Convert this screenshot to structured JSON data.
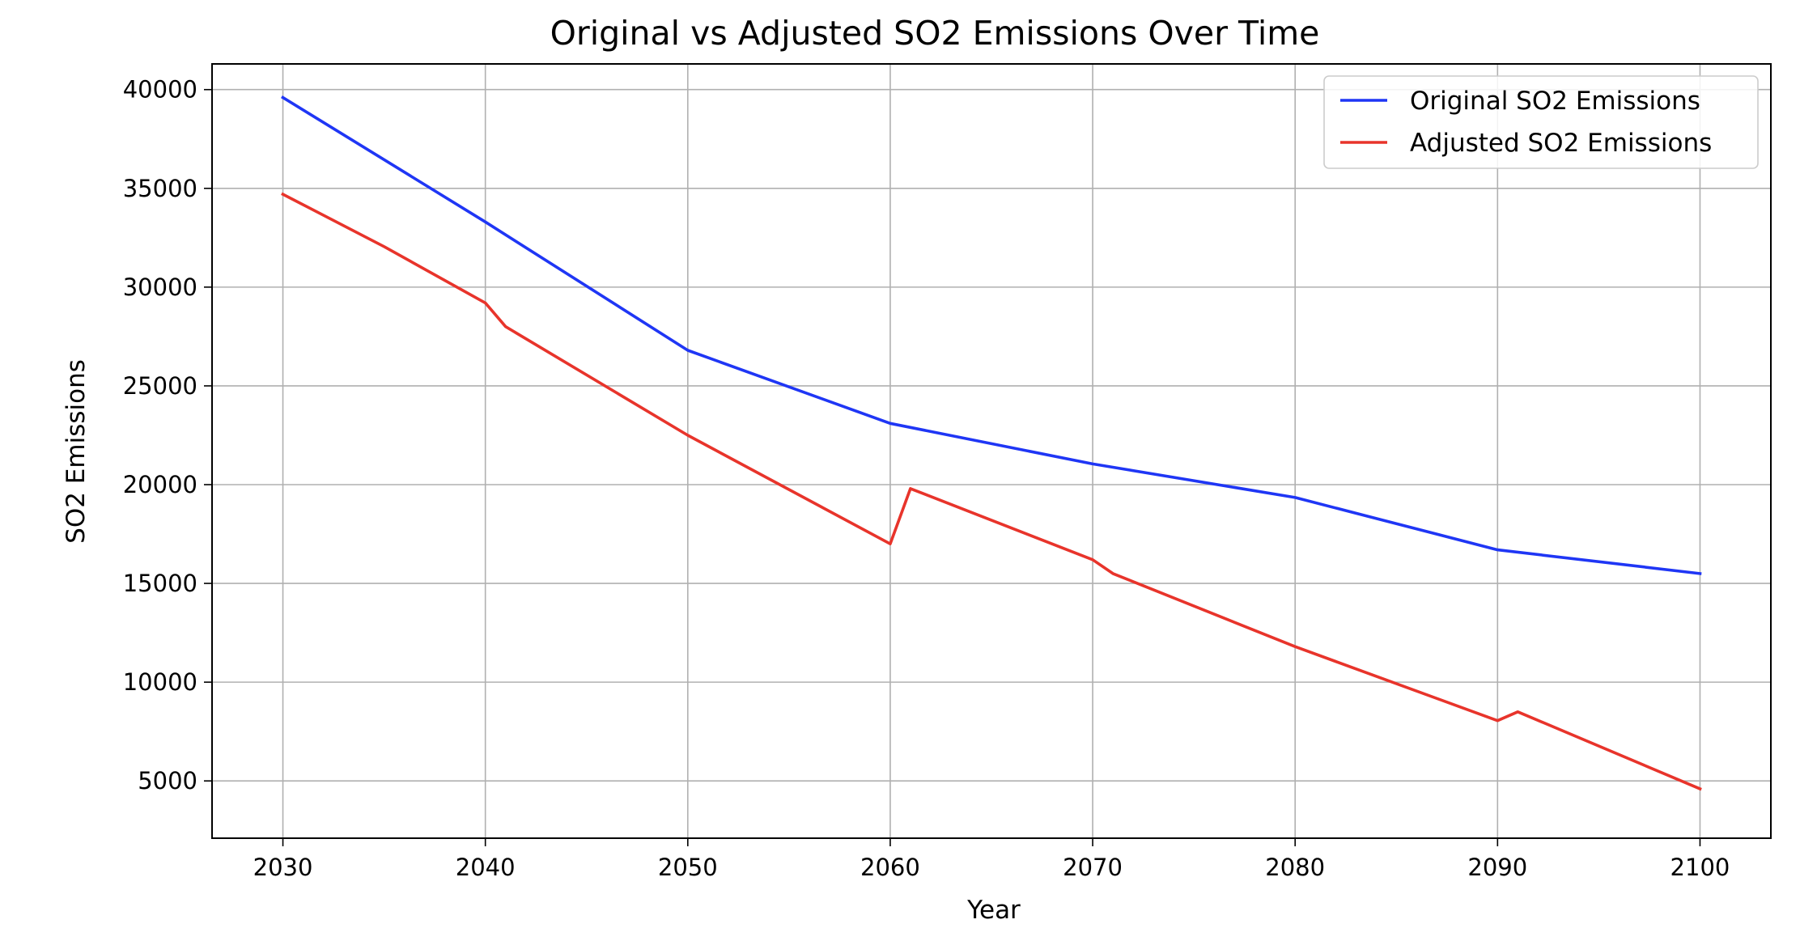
{
  "chart_data": {
    "type": "line",
    "title": "Original vs Adjusted SO2 Emissions Over Time",
    "xlabel": "Year",
    "ylabel": "SO2 Emissions",
    "xlim": [
      2026.5,
      2103.5
    ],
    "ylim": [
      2100,
      41300
    ],
    "x_ticks": [
      2030,
      2040,
      2050,
      2060,
      2070,
      2080,
      2090,
      2100
    ],
    "y_ticks": [
      5000,
      10000,
      15000,
      20000,
      25000,
      30000,
      35000,
      40000
    ],
    "grid": true,
    "legend_position": "top-right",
    "series": [
      {
        "name": "Original SO2 Emissions",
        "color": "#1f36f5",
        "x": [
          2030,
          2040,
          2050,
          2060,
          2070,
          2080,
          2090,
          2100
        ],
        "y": [
          39600,
          33300,
          26800,
          23100,
          21050,
          19350,
          16700,
          15500
        ]
      },
      {
        "name": "Adjusted SO2 Emissions",
        "color": "#e8342b",
        "x": [
          2030,
          2035,
          2040,
          2041,
          2050,
          2060,
          2061,
          2070,
          2071,
          2080,
          2082,
          2090,
          2091,
          2100
        ],
        "y": [
          34700,
          32050,
          29200,
          28000,
          22500,
          17000,
          19800,
          16200,
          15500,
          11800,
          11050,
          8050,
          8500,
          4600
        ]
      }
    ]
  }
}
